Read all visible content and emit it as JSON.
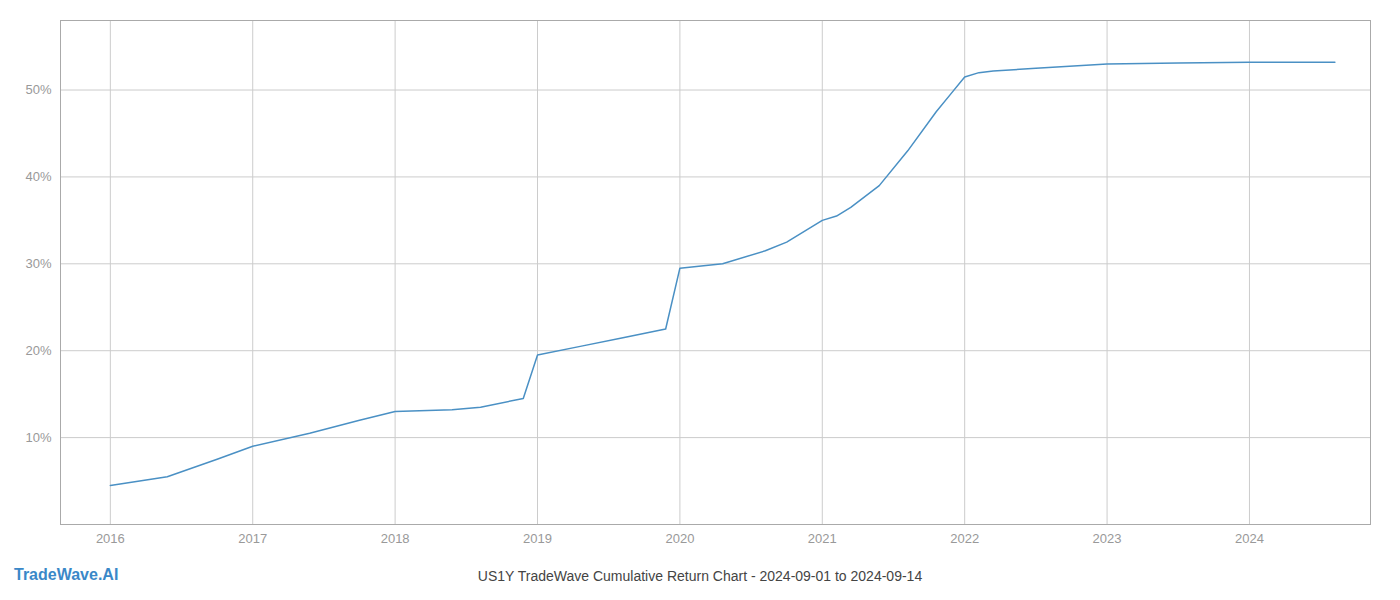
{
  "chart_data": {
    "type": "line",
    "title": "US1Y TradeWave Cumulative Return Chart - 2024-09-01 to 2024-09-14",
    "annotations": [
      {
        "text": "TradeWave.AI",
        "color": "#3a88c8"
      }
    ],
    "x": [
      2016.0,
      2016.4,
      2016.75,
      2017.0,
      2017.4,
      2017.75,
      2018.0,
      2018.4,
      2018.6,
      2018.9,
      2019.0,
      2019.3,
      2019.6,
      2019.9,
      2020.0,
      2020.3,
      2020.6,
      2020.75,
      2021.0,
      2021.1,
      2021.2,
      2021.4,
      2021.6,
      2021.8,
      2021.9,
      2022.0,
      2022.1,
      2022.2,
      2022.5,
      2023.0,
      2023.5,
      2024.0,
      2024.6
    ],
    "values": [
      4.5,
      5.5,
      7.5,
      9.0,
      10.5,
      12.0,
      13.0,
      13.2,
      13.5,
      14.5,
      19.5,
      20.5,
      21.5,
      22.5,
      29.5,
      30.0,
      31.5,
      32.5,
      35.0,
      35.5,
      36.5,
      39.0,
      43.0,
      47.5,
      49.5,
      51.5,
      52.0,
      52.2,
      52.5,
      53.0,
      53.1,
      53.2,
      53.2
    ],
    "color": "#4a90c4",
    "xlim": [
      2015.65,
      2024.85
    ],
    "xticks": [
      2016,
      2017,
      2018,
      2019,
      2020,
      2021,
      2022,
      2023,
      2024
    ],
    "ylim": [
      0,
      58
    ],
    "yticks": [
      {
        "value": 10,
        "label": "10%"
      },
      {
        "value": 20,
        "label": "20%"
      },
      {
        "value": 30,
        "label": "30%"
      },
      {
        "value": 40,
        "label": "40%"
      },
      {
        "value": 50,
        "label": "50%"
      }
    ],
    "grid": true
  }
}
